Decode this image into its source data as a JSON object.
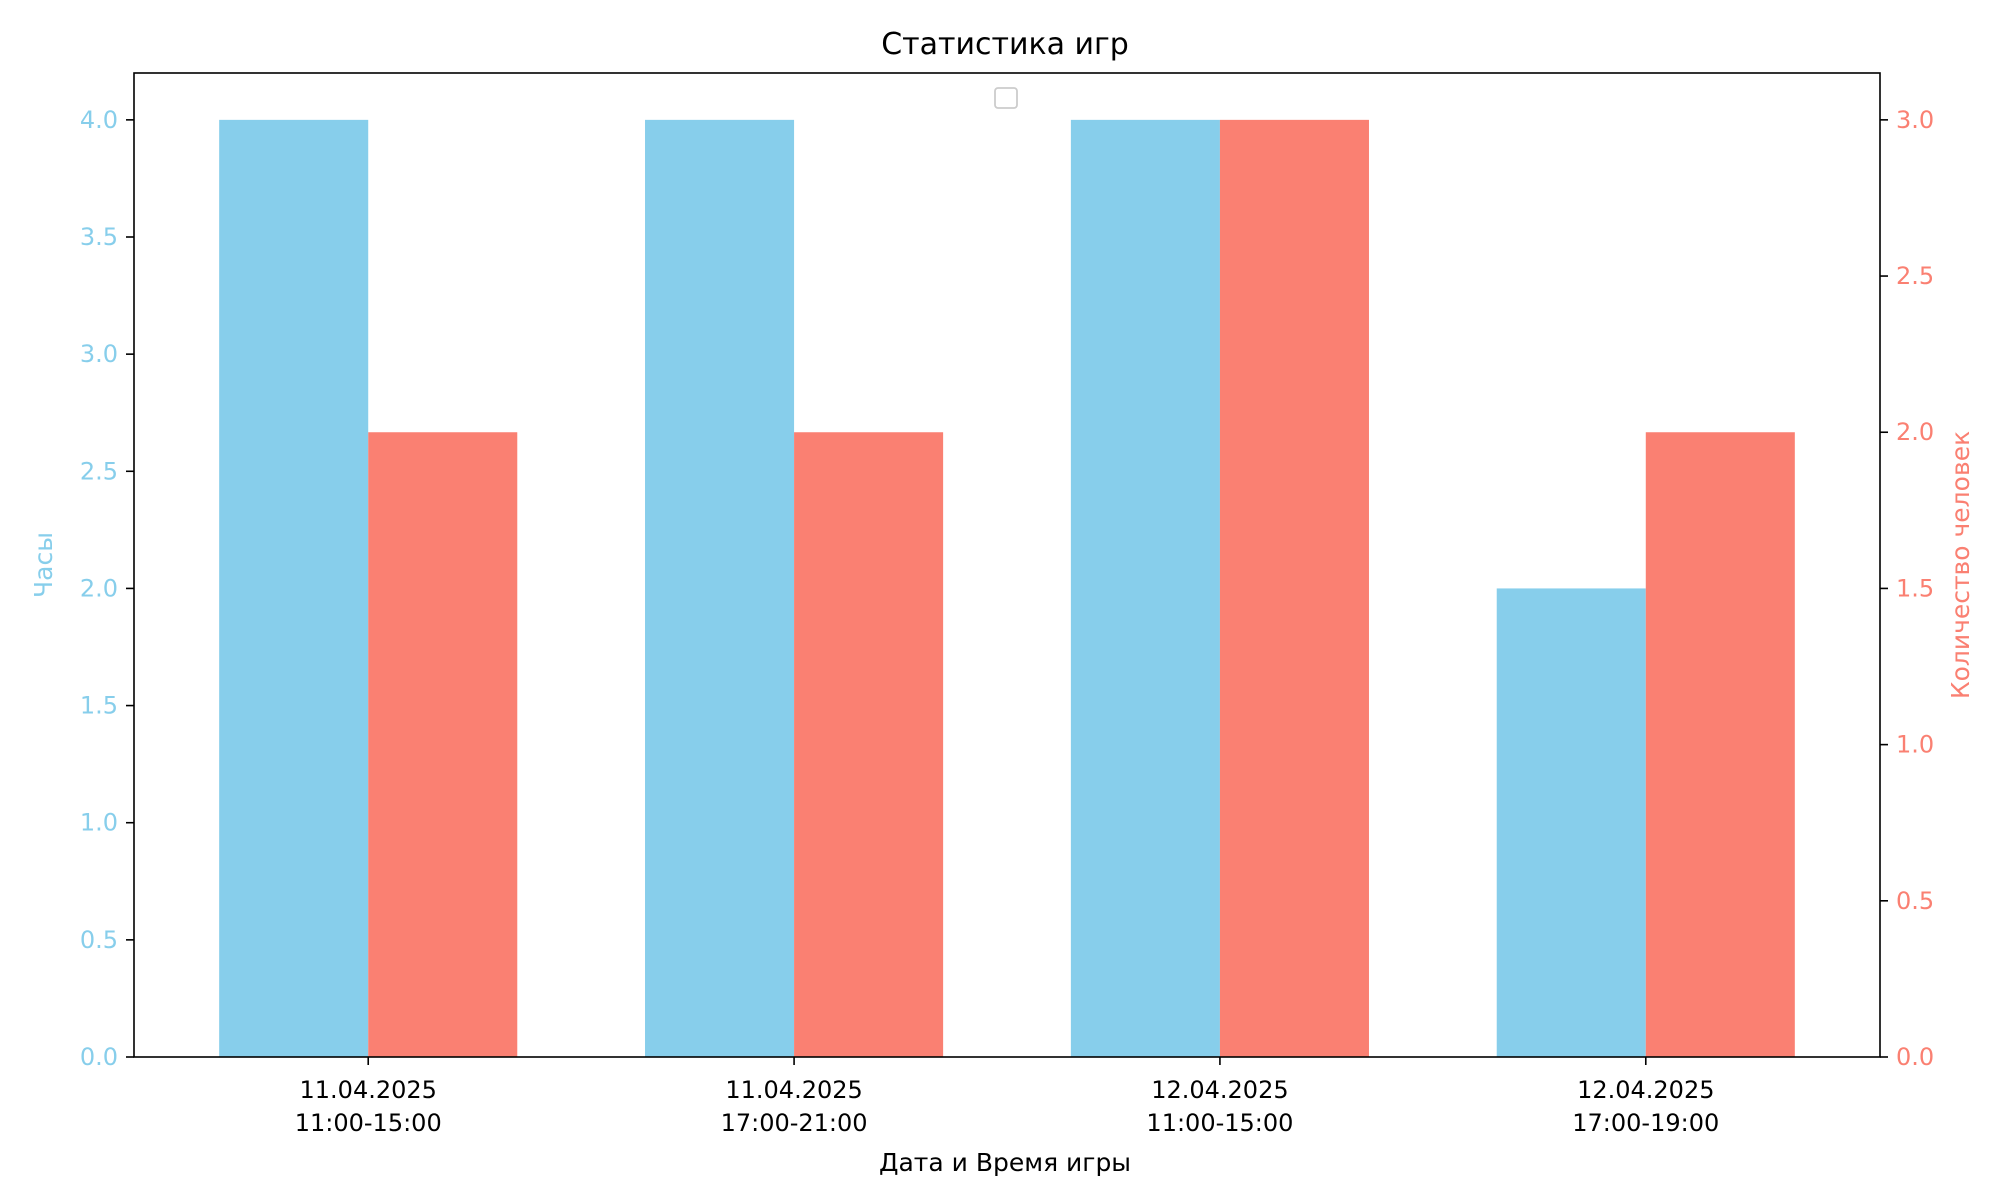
{
  "chart_data": {
    "type": "bar",
    "title": "Статистика игр",
    "xlabel": "Дата и Время игры",
    "categories": [
      [
        "11.04.2025",
        "11:00-15:00"
      ],
      [
        "11.04.2025",
        "17:00-21:00"
      ],
      [
        "12.04.2025",
        "11:00-15:00"
      ],
      [
        "12.04.2025",
        "17:00-19:00"
      ]
    ],
    "series": [
      {
        "values": [
          4,
          4,
          4,
          2
        ],
        "color": "#87CEEB",
        "axis": "left"
      },
      {
        "values": [
          2,
          2,
          3,
          2
        ],
        "color": "#FA8072",
        "axis": "right"
      }
    ],
    "y_left": {
      "label": "Часы",
      "color": "#87CEEB",
      "ylim": [
        0,
        4.2
      ],
      "ticks": [
        "0.0",
        "0.5",
        "1.0",
        "1.5",
        "2.0",
        "2.5",
        "3.0",
        "3.5",
        "4.0"
      ]
    },
    "y_right": {
      "label": "Количество человек",
      "color": "#FA8072",
      "ylim": [
        0,
        3.15
      ],
      "ticks": [
        "0.0",
        "0.5",
        "1.0",
        "1.5",
        "2.0",
        "2.5",
        "3.0"
      ]
    },
    "legend": {
      "placement": "upper center",
      "entries": []
    },
    "grid": false
  }
}
